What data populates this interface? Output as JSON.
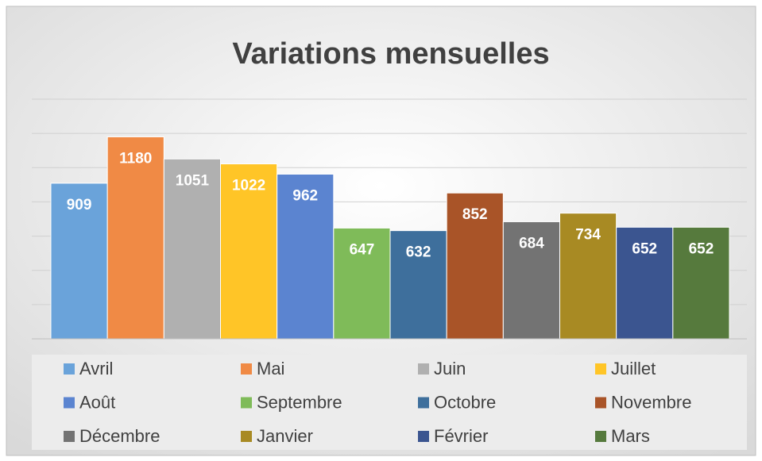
{
  "chart_data": {
    "type": "bar",
    "title": "Variations mensuelles",
    "series": [
      {
        "name": "Avril",
        "color": "#6aa3da",
        "values": [
          909
        ]
      },
      {
        "name": "Mai",
        "color": "#f08a45",
        "values": [
          1180
        ]
      },
      {
        "name": "Juin",
        "color": "#b0b0b0",
        "values": [
          1051
        ]
      },
      {
        "name": "Juillet",
        "color": "#ffc527",
        "values": [
          1022
        ]
      },
      {
        "name": "Août",
        "color": "#5b84d0",
        "values": [
          962
        ]
      },
      {
        "name": "Septembre",
        "color": "#7fbb59",
        "values": [
          647
        ]
      },
      {
        "name": "Octobre",
        "color": "#3e6f9c",
        "values": [
          632
        ]
      },
      {
        "name": "Novembre",
        "color": "#a95428",
        "values": [
          852
        ]
      },
      {
        "name": "Décembre",
        "color": "#737373",
        "values": [
          684
        ]
      },
      {
        "name": "Janvier",
        "color": "#a88a23",
        "values": [
          734
        ]
      },
      {
        "name": "Février",
        "color": "#3b5590",
        "values": [
          652
        ]
      },
      {
        "name": "Mars",
        "color": "#567a3d",
        "values": [
          652
        ]
      }
    ],
    "ylim": [
      0,
      1400
    ],
    "yticks": [
      0,
      200,
      400,
      600,
      800,
      1000,
      1200,
      1400
    ],
    "grid": true,
    "legend": "bottom"
  }
}
